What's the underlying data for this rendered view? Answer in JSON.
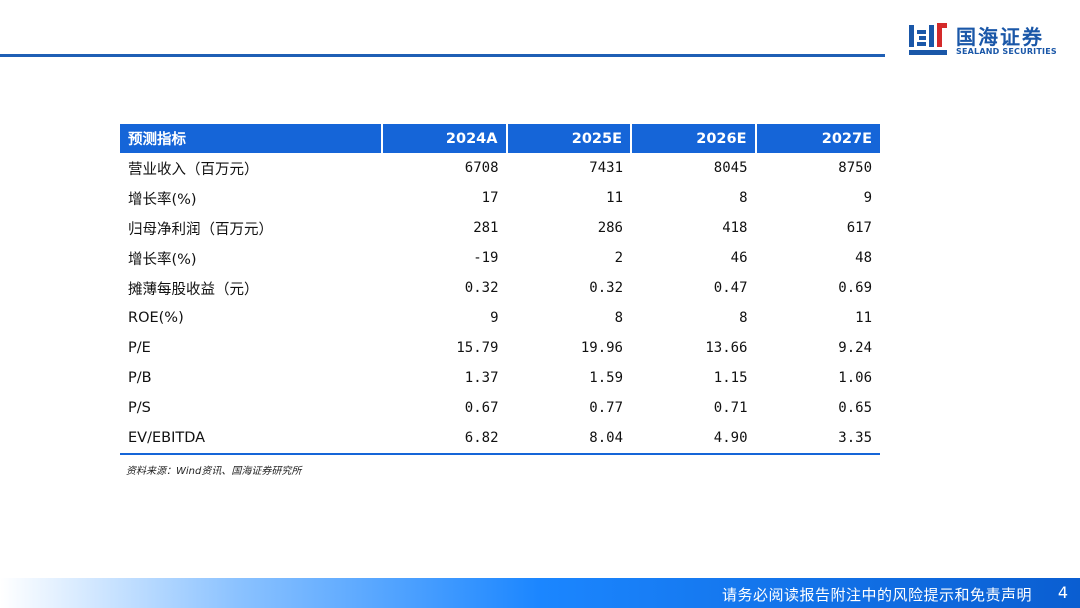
{
  "brand": {
    "name_cn": "国海证券",
    "name_en": "SEALAND SECURITIES",
    "color": "#1a57a8"
  },
  "table": {
    "headers": [
      "预测指标",
      "2024A",
      "2025E",
      "2026E",
      "2027E"
    ],
    "rows": [
      {
        "label": "营业收入（百万元）",
        "values": [
          "6708",
          "7431",
          "8045",
          "8750"
        ]
      },
      {
        "label": "增长率(%)",
        "values": [
          "17",
          "11",
          "8",
          "9"
        ]
      },
      {
        "label": "归母净利润（百万元）",
        "values": [
          "281",
          "286",
          "418",
          "617"
        ]
      },
      {
        "label": "增长率(%)",
        "values": [
          "-19",
          "2",
          "46",
          "48"
        ]
      },
      {
        "label": "摊薄每股收益（元）",
        "values": [
          "0.32",
          "0.32",
          "0.47",
          "0.69"
        ]
      },
      {
        "label": "ROE(%)",
        "values": [
          "9",
          "8",
          "8",
          "11"
        ]
      },
      {
        "label": "P/E",
        "values": [
          "15.79",
          "19.96",
          "13.66",
          "9.24"
        ]
      },
      {
        "label": "P/B",
        "values": [
          "1.37",
          "1.59",
          "1.15",
          "1.06"
        ]
      },
      {
        "label": "P/S",
        "values": [
          "0.67",
          "0.77",
          "0.71",
          "0.65"
        ]
      },
      {
        "label": "EV/EBITDA",
        "values": [
          "6.82",
          "8.04",
          "4.90",
          "3.35"
        ]
      }
    ],
    "header_color": "#1565d8"
  },
  "source_note": "资料来源：Wind资讯、国海证券研究所",
  "footer": {
    "disclaimer": "请务必阅读报告附注中的风险提示和免责声明",
    "page_number": "4"
  }
}
